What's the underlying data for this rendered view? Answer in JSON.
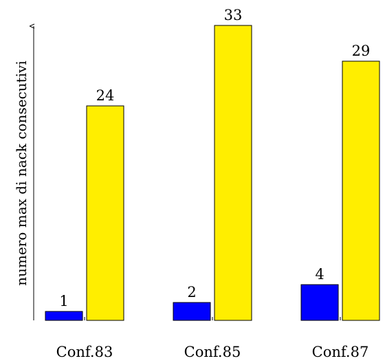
{
  "chart_data": {
    "type": "bar",
    "title": "",
    "xlabel": "",
    "ylabel": "numero max di nack consecutivi",
    "categories": [
      "Conf.83",
      "Conf.85",
      "Conf.87"
    ],
    "series": [
      {
        "values": [
          1,
          2,
          4
        ],
        "color": "#0000ff"
      },
      {
        "values": [
          24,
          33,
          29
        ],
        "color": "#ffee00"
      }
    ],
    "ylim": [
      0,
      33
    ],
    "grid": false,
    "legend": "none"
  }
}
